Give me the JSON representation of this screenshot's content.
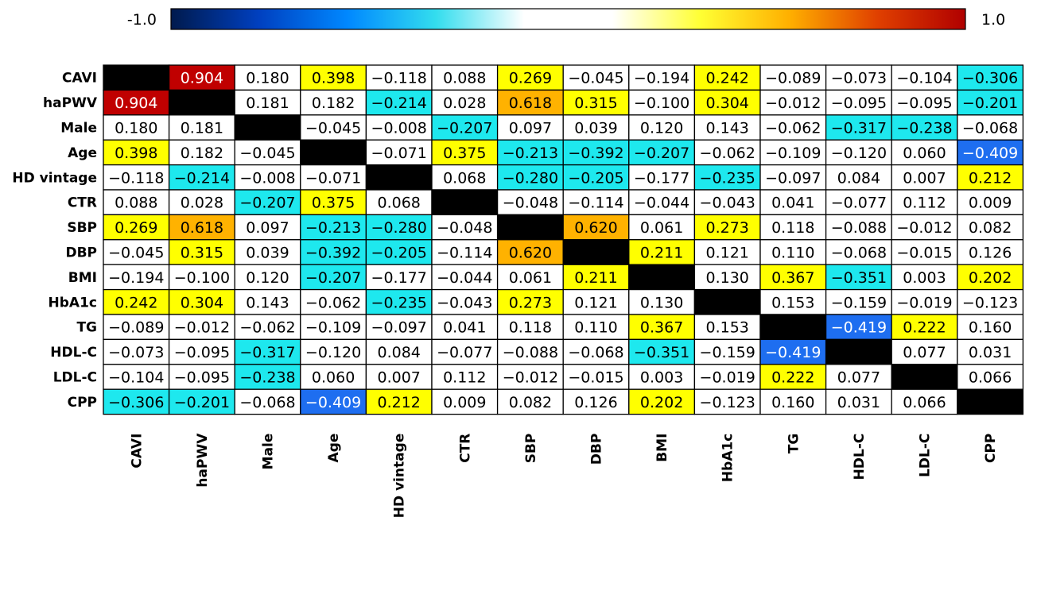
{
  "chart_data": {
    "type": "heatmap",
    "variables": [
      "CAVI",
      "haPWV",
      "Male",
      "Age",
      "HD vintage",
      "CTR",
      "SBP",
      "DBP",
      "BMI",
      "HbA1c",
      "TG",
      "HDL-C",
      "LDL-C",
      "CPP"
    ],
    "values": [
      [
        null,
        0.904,
        0.18,
        0.398,
        -0.118,
        0.088,
        0.269,
        -0.045,
        -0.194,
        0.242,
        -0.089,
        -0.073,
        -0.104,
        -0.306
      ],
      [
        0.904,
        null,
        0.181,
        0.182,
        -0.214,
        0.028,
        0.618,
        0.315,
        -0.1,
        0.304,
        -0.012,
        -0.095,
        -0.095,
        -0.201
      ],
      [
        0.18,
        0.181,
        null,
        -0.045,
        -0.008,
        -0.207,
        0.097,
        0.039,
        0.12,
        0.143,
        -0.062,
        -0.317,
        -0.238,
        -0.068
      ],
      [
        0.398,
        0.182,
        -0.045,
        null,
        -0.071,
        0.375,
        -0.213,
        -0.392,
        -0.207,
        -0.062,
        -0.109,
        -0.12,
        0.06,
        -0.409
      ],
      [
        -0.118,
        -0.214,
        -0.008,
        -0.071,
        null,
        0.068,
        -0.28,
        -0.205,
        -0.177,
        -0.235,
        -0.097,
        0.084,
        0.007,
        0.212
      ],
      [
        0.088,
        0.028,
        -0.207,
        0.375,
        0.068,
        null,
        -0.048,
        -0.114,
        -0.044,
        -0.043,
        0.041,
        -0.077,
        0.112,
        0.009
      ],
      [
        0.269,
        0.618,
        0.097,
        -0.213,
        -0.28,
        -0.048,
        null,
        0.62,
        0.061,
        0.273,
        0.118,
        -0.088,
        -0.012,
        0.082
      ],
      [
        -0.045,
        0.315,
        0.039,
        -0.392,
        -0.205,
        -0.114,
        0.62,
        null,
        0.211,
        0.121,
        0.11,
        -0.068,
        -0.015,
        0.126
      ],
      [
        -0.194,
        -0.1,
        0.12,
        -0.207,
        -0.177,
        -0.044,
        0.061,
        0.211,
        null,
        0.13,
        0.367,
        -0.351,
        0.003,
        0.202
      ],
      [
        0.242,
        0.304,
        0.143,
        -0.062,
        -0.235,
        -0.043,
        0.273,
        0.121,
        0.13,
        null,
        0.153,
        -0.159,
        -0.019,
        -0.123
      ],
      [
        -0.089,
        -0.012,
        -0.062,
        -0.109,
        -0.097,
        0.041,
        0.118,
        0.11,
        0.367,
        0.153,
        null,
        -0.419,
        0.222,
        0.16
      ],
      [
        -0.073,
        -0.095,
        -0.317,
        -0.12,
        0.084,
        -0.077,
        -0.088,
        -0.068,
        -0.351,
        -0.159,
        -0.419,
        null,
        0.077,
        0.031
      ],
      [
        -0.104,
        -0.095,
        -0.238,
        0.06,
        0.007,
        0.112,
        -0.012,
        -0.015,
        0.003,
        -0.019,
        0.222,
        0.077,
        null,
        0.066
      ],
      [
        -0.306,
        -0.201,
        -0.068,
        -0.409,
        0.212,
        0.009,
        0.082,
        0.126,
        0.202,
        -0.123,
        0.16,
        0.031,
        0.066,
        null
      ]
    ],
    "color_scale": {
      "min": -1.0,
      "max": 1.0,
      "min_label": "-1.0",
      "max_label": "1.0",
      "gradient_stops": [
        "#001a4d",
        "#0040c0",
        "#0088ff",
        "#33ddee",
        "#ffffff",
        "#ffffff",
        "#ffff33",
        "#ffb000",
        "#e04000",
        "#b00000"
      ]
    },
    "cell_colors": {
      "strong_positive": "#c00000",
      "moderate_positive": "#ffb200",
      "weak_positive": "#ffff00",
      "neutral": "#ffffff",
      "weak_negative": "#1ee8ee",
      "moderate_negative": "#1e6ef0",
      "diagonal": "#000000"
    },
    "color_thresholds": {
      "weak": 0.2,
      "moderate": 0.4,
      "strong": 0.7
    },
    "grid": true,
    "legend_position": "top"
  }
}
